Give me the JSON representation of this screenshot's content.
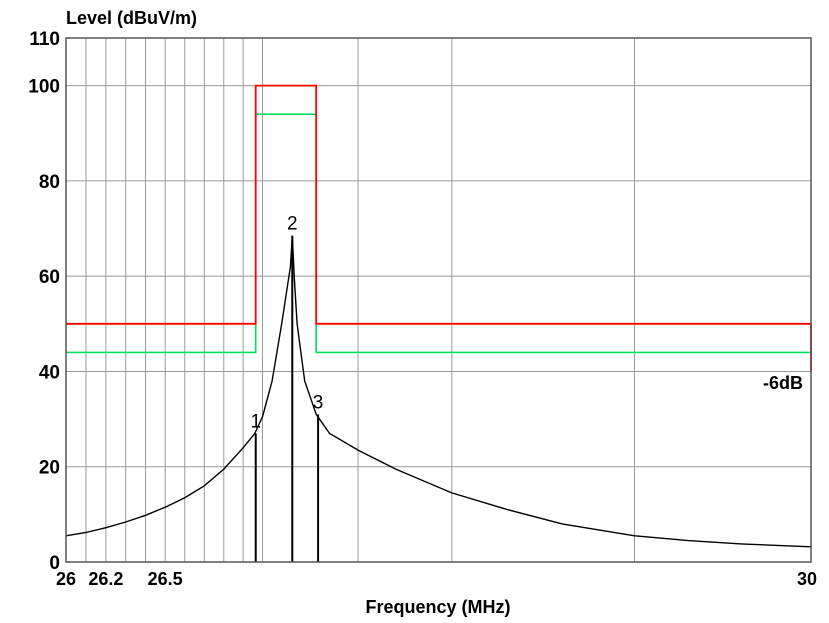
{
  "chart_data": {
    "type": "line",
    "ylabel": "Level (dBuV/m)",
    "xlabel": "Frequency (MHz)",
    "xlim": [
      26,
      30
    ],
    "ylim": [
      0,
      110
    ],
    "x_scale": "log",
    "grid": true,
    "y_ticks": [
      {
        "value": 0,
        "label": "0"
      },
      {
        "value": 20,
        "label": "20"
      },
      {
        "value": 40,
        "label": "40"
      },
      {
        "value": 60,
        "label": "60"
      },
      {
        "value": 80,
        "label": "80"
      },
      {
        "value": 100,
        "label": "100"
      },
      {
        "value": 110,
        "label": "110"
      }
    ],
    "x_tick_labels": [
      {
        "value": 26,
        "label": "26"
      },
      {
        "value": 26.2,
        "label": "26.2"
      },
      {
        "value": 26.5,
        "label": "26.5"
      },
      {
        "value": 30,
        "label": "30"
      }
    ],
    "x_gridlines": [
      26,
      26.1,
      26.2,
      26.3,
      26.4,
      26.5,
      26.6,
      26.7,
      26.8,
      26.9,
      27,
      27.5,
      28,
      29,
      30
    ],
    "limit_line": {
      "color": "#ff0000",
      "points": [
        [
          26,
          50
        ],
        [
          26.965,
          50
        ],
        [
          26.965,
          100
        ],
        [
          27.28,
          100
        ],
        [
          27.28,
          50
        ],
        [
          30,
          50
        ],
        [
          30,
          40
        ]
      ]
    },
    "warning_line": {
      "color": "#00e060",
      "label": "-6dB",
      "points": [
        [
          26,
          44
        ],
        [
          26.965,
          44
        ],
        [
          26.965,
          94
        ],
        [
          27.28,
          94
        ],
        [
          27.28,
          44
        ],
        [
          30,
          44
        ]
      ]
    },
    "trace": {
      "color": "#000000",
      "points": [
        [
          26.0,
          5.5
        ],
        [
          26.1,
          6.2
        ],
        [
          26.2,
          7.2
        ],
        [
          26.3,
          8.4
        ],
        [
          26.4,
          9.8
        ],
        [
          26.5,
          11.5
        ],
        [
          26.6,
          13.5
        ],
        [
          26.7,
          16
        ],
        [
          26.8,
          19.5
        ],
        [
          26.9,
          24
        ],
        [
          26.96,
          27
        ],
        [
          27.0,
          30.5
        ],
        [
          27.05,
          38
        ],
        [
          27.1,
          50
        ],
        [
          27.13,
          58
        ],
        [
          27.145,
          62
        ],
        [
          27.155,
          68.5
        ],
        [
          27.165,
          60
        ],
        [
          27.18,
          50
        ],
        [
          27.22,
          38
        ],
        [
          27.28,
          31
        ],
        [
          27.35,
          27
        ],
        [
          27.5,
          23.5
        ],
        [
          27.7,
          19.5
        ],
        [
          28.0,
          14.5
        ],
        [
          28.3,
          11
        ],
        [
          28.6,
          8
        ],
        [
          29.0,
          5.5
        ],
        [
          29.3,
          4.5
        ],
        [
          29.6,
          3.8
        ],
        [
          30.0,
          3.2
        ]
      ]
    },
    "markers": [
      {
        "label": "1",
        "x": 26.965,
        "y": 27
      },
      {
        "label": "2",
        "x": 27.155,
        "y": 68.5
      },
      {
        "label": "3",
        "x": 27.29,
        "y": 31
      }
    ]
  }
}
